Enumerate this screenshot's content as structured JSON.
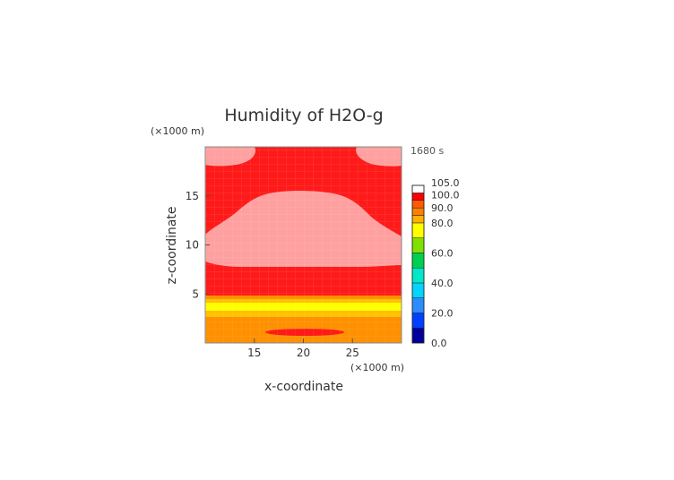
{
  "chart_data": {
    "type": "heatmap",
    "title": "Humidity of H2O-g",
    "xlabel": "x-coordinate",
    "ylabel": "z-coordinate",
    "x_unit": "(×1000 m)",
    "y_unit": "(×1000 m)",
    "time_label": "1680 s",
    "xlim": [
      10,
      30
    ],
    "ylim": [
      0,
      20
    ],
    "x_ticks": [
      "15",
      "20",
      "25"
    ],
    "y_ticks": [
      "5",
      "10",
      "15"
    ],
    "colorbar": {
      "ticks": [
        "0.0",
        "20.0",
        "40.0",
        "60.0",
        "80.0",
        "90.0",
        "100.0",
        "105.0"
      ],
      "bands": [
        {
          "from": 0,
          "to": 10,
          "color": "#00009a"
        },
        {
          "from": 10,
          "to": 20,
          "color": "#0040ff"
        },
        {
          "from": 20,
          "to": 30,
          "color": "#2b8cff"
        },
        {
          "from": 30,
          "to": 40,
          "color": "#00d4ff"
        },
        {
          "from": 40,
          "to": 50,
          "color": "#00e8c8"
        },
        {
          "from": 50,
          "to": 60,
          "color": "#00d050"
        },
        {
          "from": 60,
          "to": 70,
          "color": "#80e000"
        },
        {
          "from": 70,
          "to": 80,
          "color": "#ffff00"
        },
        {
          "from": 80,
          "to": 85,
          "color": "#ffb000"
        },
        {
          "from": 85,
          "to": 90,
          "color": "#ff8000"
        },
        {
          "from": 90,
          "to": 95,
          "color": "#ff5a00"
        },
        {
          "from": 95,
          "to": 100,
          "color": "#ff0000"
        },
        {
          "from": 100,
          "to": 105,
          "color": "#ffffff"
        }
      ]
    },
    "field_regions": [
      {
        "level": "100+",
        "color": "#ffa0a0"
      },
      {
        "level": "95-100",
        "color": "#ff1a1a"
      },
      {
        "level": "85-90",
        "color": "#ff9000"
      },
      {
        "level": "80-85",
        "color": "#ffc000"
      },
      {
        "level": "70-80",
        "color": "#ffff00"
      }
    ]
  }
}
